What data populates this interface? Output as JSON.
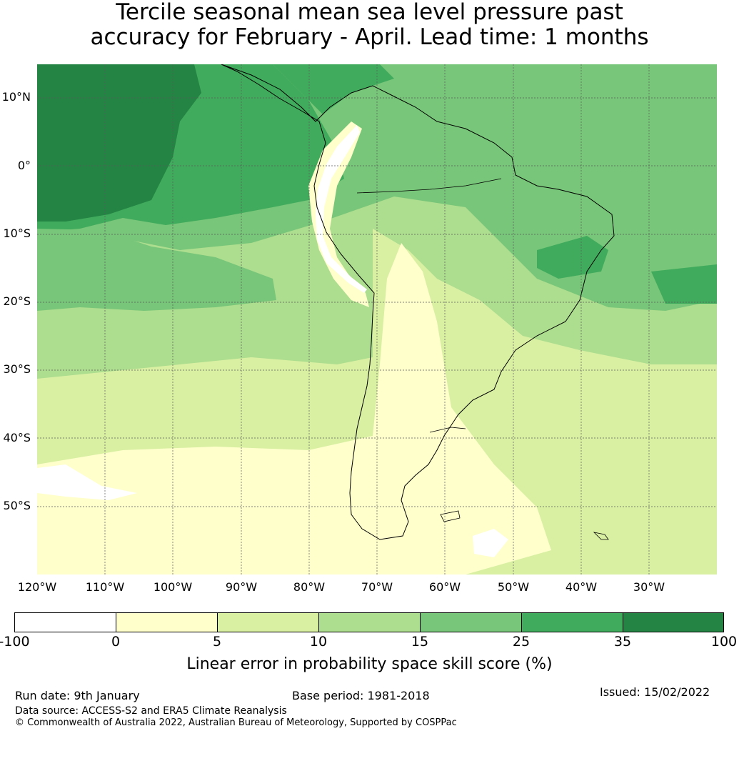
{
  "title": {
    "line1": "Tercile seasonal mean sea level pressure past",
    "line2": "accuracy for February - April. Lead time: 1 months"
  },
  "map": {
    "lat_labels": [
      "10°N",
      "0°",
      "10°S",
      "20°S",
      "30°S",
      "40°S",
      "50°S"
    ],
    "lon_labels": [
      "120°W",
      "110°W",
      "100°W",
      "90°W",
      "80°W",
      "70°W",
      "60°W",
      "50°W",
      "40°W",
      "30°W"
    ],
    "land_outline_color": "#000000",
    "gridline_color": "#5a5a5a"
  },
  "colorbar": {
    "ticks": [
      "-100",
      "0",
      "5",
      "10",
      "15",
      "25",
      "35",
      "100"
    ],
    "colors": [
      "#ffffff",
      "#ffffcc",
      "#d9f0a3",
      "#addd8e",
      "#78c679",
      "#41ab5d",
      "#238443"
    ],
    "label": "Linear error in probability space skill score (%)"
  },
  "footer": {
    "run_date": "Run date: 9th January",
    "base_period": "Base period: 1981-2018",
    "issued": "Issued: 15/02/2022",
    "data_source": "Data source: ACCESS-S2 and ERA5 Climate Reanalysis",
    "copyright": "© Commonwealth of Australia 2022, Australian Bureau of Meteorology, Supported by COSPPac"
  }
}
